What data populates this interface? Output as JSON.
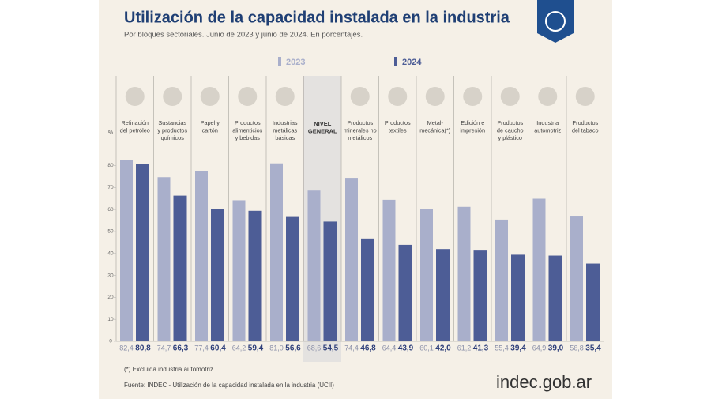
{
  "chart_data": {
    "type": "bar",
    "title": "Utilización de la capacidad instalada en la industria",
    "subtitle": "Por bloques sectoriales. Junio de 2023 y junio de 2024. En porcentajes.",
    "y_unit": "%",
    "categories": [
      [
        "Refinación",
        "del petróleo"
      ],
      [
        "Sustancias",
        "y productos",
        "químicos"
      ],
      [
        "Papel y",
        "cartón"
      ],
      [
        "Productos",
        "alimenticios",
        "y bebidas"
      ],
      [
        "Industrias",
        "metálicas",
        "básicas"
      ],
      [
        "NIVEL",
        "GENERAL"
      ],
      [
        "Productos",
        "minerales no",
        "metálicos"
      ],
      [
        "Productos",
        "textiles"
      ],
      [
        "Metal-",
        "mecánica(*)"
      ],
      [
        "Edición e",
        "impresión"
      ],
      [
        "Productos",
        "de caucho",
        "y plástico"
      ],
      [
        "Industria",
        "automotriz"
      ],
      [
        "Productos",
        "del tabaco"
      ]
    ],
    "highlight_category": 5,
    "series": [
      {
        "name": "2023",
        "color": "#a9afcb",
        "values": [
          82.4,
          74.7,
          77.4,
          64.2,
          81,
          68.6,
          74.4,
          64.4,
          60.1,
          61.2,
          55.4,
          64.9,
          56.8
        ],
        "value_labels": [
          "82,4",
          "74,7",
          "77,4",
          "64,2",
          "81,0",
          "68,6",
          "74,4",
          "64,4",
          "60,1",
          "61,2",
          "55,4",
          "64,9",
          "56,8"
        ]
      },
      {
        "name": "2024",
        "color": "#4d5d96",
        "values": [
          80.8,
          66.3,
          60.4,
          59.4,
          56.6,
          54.5,
          46.8,
          43.9,
          42,
          41.3,
          39.4,
          39,
          35.4
        ],
        "value_labels": [
          "80,8",
          "66,3",
          "60,4",
          "59,4",
          "56,6",
          "54,5",
          "46,8",
          "43,9",
          "42,0",
          "41,3",
          "39,4",
          "39,0",
          "35,4"
        ]
      }
    ],
    "ylim": [
      0,
      85
    ],
    "yticks": [
      0,
      10,
      20,
      30,
      40,
      50,
      60,
      70,
      80
    ],
    "grid": false,
    "footnote": "(*) Excluida industria automotriz",
    "source": "Fuente: INDEC - Utilización de la capacidad instalada en la industria (UCII)",
    "logo": "indec.gob.ar"
  }
}
